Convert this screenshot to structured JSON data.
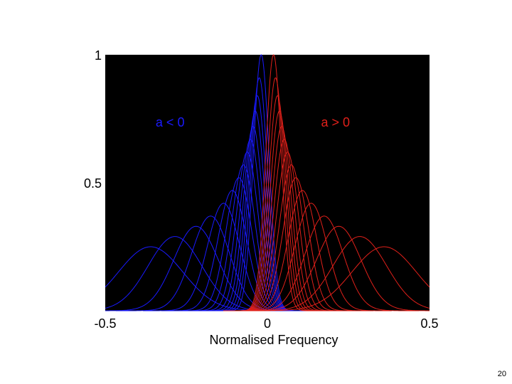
{
  "slide": {
    "page_number": "20"
  },
  "chart_data": {
    "type": "line",
    "title": "",
    "xlabel": "Normalised Frequency",
    "ylabel": "",
    "xlim": [
      -0.5,
      0.5
    ],
    "ylim": [
      0,
      1
    ],
    "x_ticks": [
      {
        "value": -0.5,
        "label": "-0.5"
      },
      {
        "value": 0,
        "label": "0"
      },
      {
        "value": 0.5,
        "label": "0.5"
      }
    ],
    "y_ticks": [
      {
        "value": 0.5,
        "label": "0.5"
      },
      {
        "value": 1,
        "label": "1"
      }
    ],
    "background": "#000000",
    "grid": false,
    "legend": "none",
    "annotations": [
      {
        "text": "a < 0",
        "x": -0.3,
        "y": 0.72,
        "color": "#1a1aff"
      },
      {
        "text": "a > 0",
        "x": 0.21,
        "y": 0.72,
        "color": "#e0201a"
      }
    ],
    "series": [
      {
        "color": "#1a1aff",
        "curves": [
          {
            "center": -0.36,
            "peak": 0.25
          },
          {
            "center": -0.285,
            "peak": 0.29
          },
          {
            "center": -0.22,
            "peak": 0.33
          },
          {
            "center": -0.175,
            "peak": 0.37
          },
          {
            "center": -0.135,
            "peak": 0.42
          },
          {
            "center": -0.108,
            "peak": 0.47
          },
          {
            "center": -0.088,
            "peak": 0.52
          },
          {
            "center": -0.074,
            "peak": 0.57
          },
          {
            "center": -0.062,
            "peak": 0.62
          },
          {
            "center": -0.052,
            "peak": 0.67
          },
          {
            "center": -0.044,
            "peak": 0.72
          },
          {
            "center": -0.037,
            "peak": 0.78
          },
          {
            "center": -0.031,
            "peak": 0.84
          },
          {
            "center": -0.025,
            "peak": 0.91
          },
          {
            "center": -0.019,
            "peak": 1.0
          }
        ]
      },
      {
        "color": "#e0201a",
        "curves": [
          {
            "center": 0.019,
            "peak": 1.0
          },
          {
            "center": 0.025,
            "peak": 0.91
          },
          {
            "center": 0.031,
            "peak": 0.84
          },
          {
            "center": 0.037,
            "peak": 0.78
          },
          {
            "center": 0.044,
            "peak": 0.72
          },
          {
            "center": 0.052,
            "peak": 0.67
          },
          {
            "center": 0.062,
            "peak": 0.62
          },
          {
            "center": 0.074,
            "peak": 0.57
          },
          {
            "center": 0.088,
            "peak": 0.52
          },
          {
            "center": 0.108,
            "peak": 0.47
          },
          {
            "center": 0.135,
            "peak": 0.42
          },
          {
            "center": 0.175,
            "peak": 0.37
          },
          {
            "center": 0.22,
            "peak": 0.33
          },
          {
            "center": 0.285,
            "peak": 0.29
          },
          {
            "center": 0.36,
            "peak": 0.25
          }
        ]
      }
    ]
  }
}
